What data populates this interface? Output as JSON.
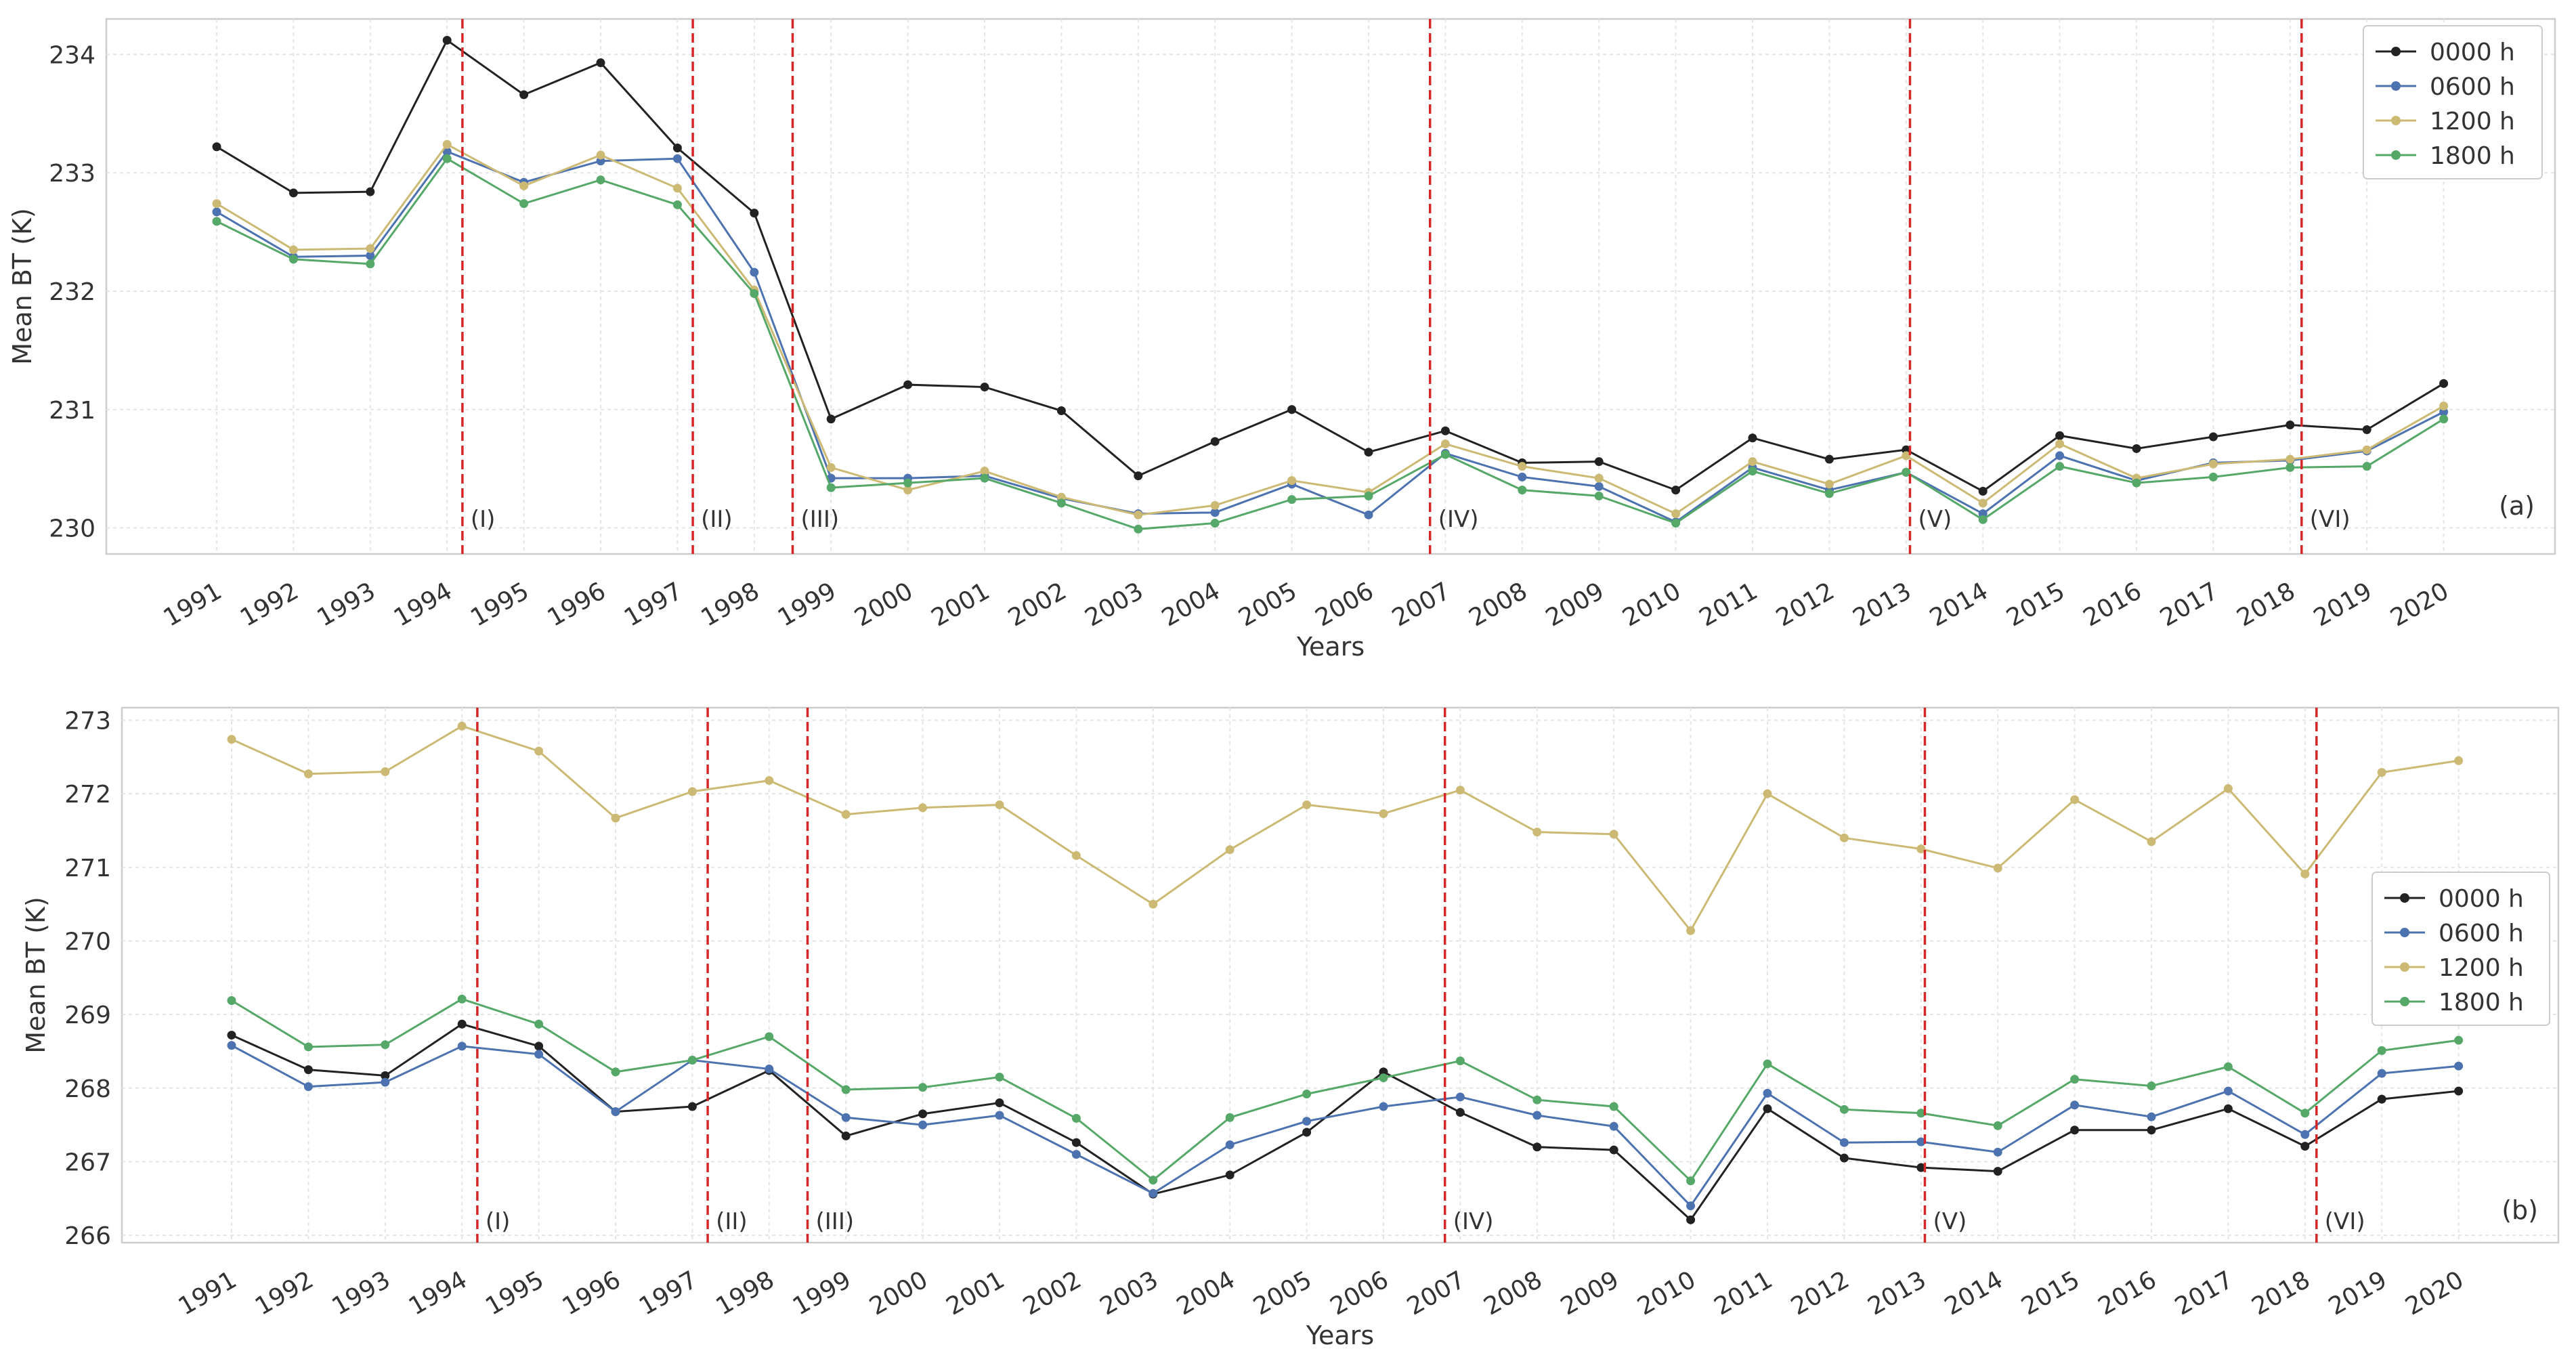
{
  "colors": {
    "s0000": "#222222",
    "s0600": "#4c72b0",
    "s1200": "#ccb974",
    "s1800": "#55a868",
    "vline": "#d62728",
    "grid": "#e4e4e4",
    "frame": "#cccccc"
  },
  "chart_data": [
    {
      "type": "line",
      "panel_label": "(a)",
      "xlabel": "Years",
      "ylabel": "Mean BT (K)",
      "ylim": [
        229.78,
        234.3
      ],
      "yticks": [
        "230",
        "231",
        "232",
        "233",
        "234"
      ],
      "categories": [
        "1991",
        "1992",
        "1993",
        "1994",
        "1995",
        "1996",
        "1997",
        "1998",
        "1999",
        "2000",
        "2001",
        "2002",
        "2003",
        "2004",
        "2005",
        "2006",
        "2007",
        "2008",
        "2009",
        "2010",
        "2011",
        "2012",
        "2013",
        "2014",
        "2015",
        "2016",
        "2017",
        "2018",
        "2019",
        "2020"
      ],
      "legend": {
        "position": "top-right"
      },
      "series": [
        {
          "name": "0000 h",
          "color_key": "s0000",
          "values": [
            233.22,
            232.83,
            232.84,
            234.12,
            233.66,
            233.93,
            233.21,
            232.66,
            230.92,
            231.21,
            231.19,
            230.99,
            230.44,
            230.73,
            231.0,
            230.64,
            230.82,
            230.55,
            230.56,
            230.32,
            230.76,
            230.58,
            230.66,
            230.31,
            230.78,
            230.67,
            230.77,
            230.87,
            230.83,
            231.22
          ]
        },
        {
          "name": "0600 h",
          "color_key": "s0600",
          "values": [
            232.67,
            232.29,
            232.3,
            233.18,
            232.92,
            233.1,
            233.12,
            232.16,
            230.42,
            230.42,
            230.44,
            230.25,
            230.12,
            230.13,
            230.37,
            230.11,
            230.63,
            230.43,
            230.35,
            230.05,
            230.51,
            230.32,
            230.47,
            230.12,
            230.61,
            230.4,
            230.55,
            230.57,
            230.65,
            230.98
          ]
        },
        {
          "name": "1200 h",
          "color_key": "s1200",
          "values": [
            232.74,
            232.35,
            232.36,
            233.24,
            232.89,
            233.15,
            232.87,
            232.01,
            230.51,
            230.32,
            230.48,
            230.26,
            230.11,
            230.19,
            230.4,
            230.3,
            230.71,
            230.52,
            230.42,
            230.12,
            230.56,
            230.37,
            230.61,
            230.21,
            230.71,
            230.42,
            230.54,
            230.58,
            230.66,
            231.03
          ]
        },
        {
          "name": "1800 h",
          "color_key": "s1800",
          "values": [
            232.59,
            232.27,
            232.23,
            233.12,
            232.74,
            232.94,
            232.73,
            231.98,
            230.34,
            230.38,
            230.42,
            230.21,
            229.99,
            230.04,
            230.24,
            230.27,
            230.62,
            230.32,
            230.27,
            230.04,
            230.48,
            230.29,
            230.47,
            230.07,
            230.52,
            230.38,
            230.43,
            230.51,
            230.52,
            230.92
          ]
        }
      ],
      "annotations": [
        {
          "label": "(I)",
          "x": 3.2
        },
        {
          "label": "(II)",
          "x": 6.2
        },
        {
          "label": "(III)",
          "x": 7.5
        },
        {
          "label": "(IV)",
          "x": 15.8
        },
        {
          "label": "(V)",
          "x": 22.05
        },
        {
          "label": "(VI)",
          "x": 27.15
        }
      ]
    },
    {
      "type": "line",
      "panel_label": "(b)",
      "xlabel": "Years",
      "ylabel": "Mean BT (K)",
      "ylim": [
        265.9,
        273.17
      ],
      "yticks": [
        "266",
        "267",
        "268",
        "269",
        "270",
        "271",
        "272",
        "273"
      ],
      "categories": [
        "1991",
        "1992",
        "1993",
        "1994",
        "1995",
        "1996",
        "1997",
        "1998",
        "1999",
        "2000",
        "2001",
        "2002",
        "2003",
        "2004",
        "2005",
        "2006",
        "2007",
        "2008",
        "2009",
        "2010",
        "2011",
        "2012",
        "2013",
        "2014",
        "2015",
        "2016",
        "2017",
        "2018",
        "2019",
        "2020"
      ],
      "legend": {
        "position": "center-right"
      },
      "series": [
        {
          "name": "0000 h",
          "color_key": "s0000",
          "values": [
            268.72,
            268.25,
            268.17,
            268.87,
            268.57,
            267.68,
            267.75,
            268.24,
            267.35,
            267.65,
            267.8,
            267.26,
            266.56,
            266.82,
            267.4,
            268.22,
            267.67,
            267.2,
            267.16,
            266.21,
            267.72,
            267.05,
            266.92,
            266.87,
            267.43,
            267.43,
            267.72,
            267.21,
            267.85,
            267.96
          ]
        },
        {
          "name": "0600 h",
          "color_key": "s0600",
          "values": [
            268.58,
            268.02,
            268.08,
            268.57,
            268.46,
            267.68,
            268.38,
            268.26,
            267.6,
            267.5,
            267.63,
            267.1,
            266.57,
            267.23,
            267.55,
            267.75,
            267.88,
            267.63,
            267.48,
            266.4,
            267.93,
            267.26,
            267.27,
            267.13,
            267.77,
            267.61,
            267.96,
            267.37,
            268.2,
            268.3
          ]
        },
        {
          "name": "1200 h",
          "color_key": "s1200",
          "values": [
            272.74,
            272.27,
            272.3,
            272.92,
            272.58,
            271.67,
            272.03,
            272.18,
            271.72,
            271.81,
            271.85,
            271.16,
            270.5,
            271.24,
            271.85,
            271.73,
            272.05,
            271.48,
            271.45,
            270.14,
            272.0,
            271.4,
            271.25,
            270.99,
            271.92,
            271.35,
            272.07,
            270.91,
            272.29,
            272.45
          ]
        },
        {
          "name": "1800 h",
          "color_key": "s1800",
          "values": [
            269.19,
            268.56,
            268.59,
            269.21,
            268.87,
            268.22,
            268.38,
            268.7,
            267.98,
            268.01,
            268.15,
            267.59,
            266.75,
            267.6,
            267.92,
            268.14,
            268.37,
            267.84,
            267.75,
            266.74,
            268.33,
            267.71,
            267.66,
            267.49,
            268.12,
            268.03,
            268.29,
            267.66,
            268.51,
            268.65
          ]
        }
      ],
      "annotations": [
        {
          "label": "(I)",
          "x": 3.2
        },
        {
          "label": "(II)",
          "x": 6.2
        },
        {
          "label": "(III)",
          "x": 7.5
        },
        {
          "label": "(IV)",
          "x": 15.8
        },
        {
          "label": "(V)",
          "x": 22.05
        },
        {
          "label": "(VI)",
          "x": 27.15
        }
      ]
    }
  ]
}
